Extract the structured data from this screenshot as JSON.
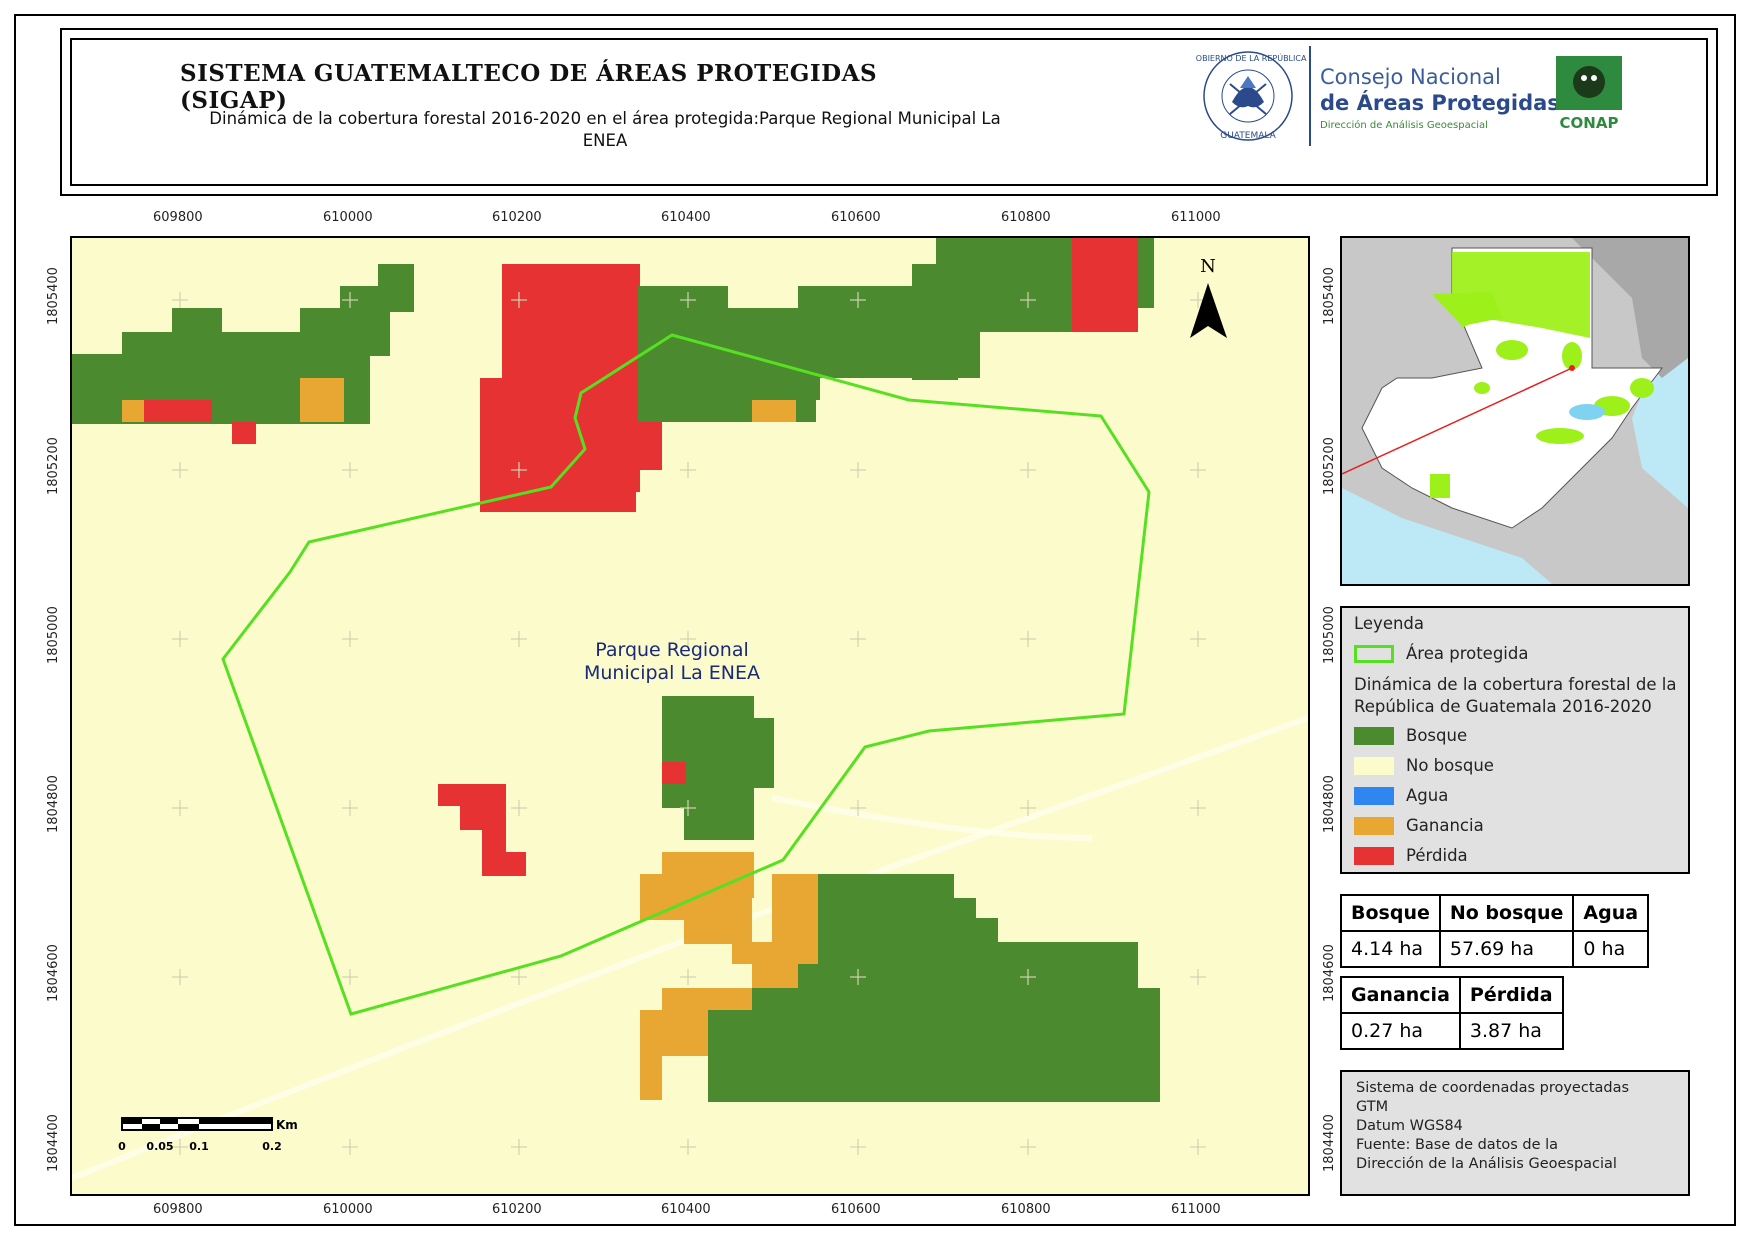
{
  "header": {
    "title": "SISTEMA GUATEMALTECO DE ÁREAS PROTEGIDAS (SIGAP)",
    "subtitle_line1": "Dinámica de la cobertura forestal 2016-2020 en el área protegida:Parque Regional Municipal La",
    "subtitle_line2": "ENEA"
  },
  "logos": {
    "seal_top": "GOBIERNO DE LA REPÚBLICA",
    "seal_bottom": "GUATEMALA",
    "conap_line1": "Consejo Nacional",
    "conap_line2": "de Áreas Protegidas",
    "conap_line3": "Dirección de Análisis Geoespacial",
    "conap_badge": "CONAP"
  },
  "map": {
    "area_label_line1": "Parque Regional",
    "area_label_line2": "Municipal La ENEA",
    "north_label": "N",
    "x_ticks": [
      "609800",
      "610000",
      "610200",
      "610400",
      "610600",
      "610800",
      "611000"
    ],
    "y_ticks": [
      "1805400",
      "1805200",
      "1805000",
      "1804800",
      "1804600",
      "1804400"
    ],
    "scale_unit": "Km",
    "scale_labels": [
      "0",
      "0.05",
      "0.1",
      "0.2"
    ]
  },
  "legend": {
    "title": "Leyenda",
    "protected_area": "Área protegida",
    "section_title_line1": "Dinámica de la cobertura forestal de la",
    "section_title_line2": "República de Guatemala 2016-2020",
    "items": [
      {
        "label": "Bosque",
        "color": "#4b8a2e"
      },
      {
        "label": "No bosque",
        "color": "#fbfbcc"
      },
      {
        "label": "Agua",
        "color": "#2f86f0"
      },
      {
        "label": "Ganancia",
        "color": "#e8a632"
      },
      {
        "label": "Pérdida",
        "color": "#e63232"
      }
    ],
    "protected_area_color": "#57e021"
  },
  "stats_table_1": {
    "headers": [
      "Bosque",
      "No bosque",
      "Agua"
    ],
    "values": [
      "4.14 ha",
      "57.69 ha",
      "0 ha"
    ]
  },
  "stats_table_2": {
    "headers": [
      "Ganancia",
      "Pérdida"
    ],
    "values": [
      "0.27 ha",
      "3.87 ha"
    ]
  },
  "coordinates": {
    "line1": "Sistema de coordenadas proyectadas",
    "line2": "GTM",
    "line3": "Datum WGS84",
    "line4": "Fuente: Base de datos de la",
    "line5": "Dirección de la Análisis Geoespacial"
  }
}
